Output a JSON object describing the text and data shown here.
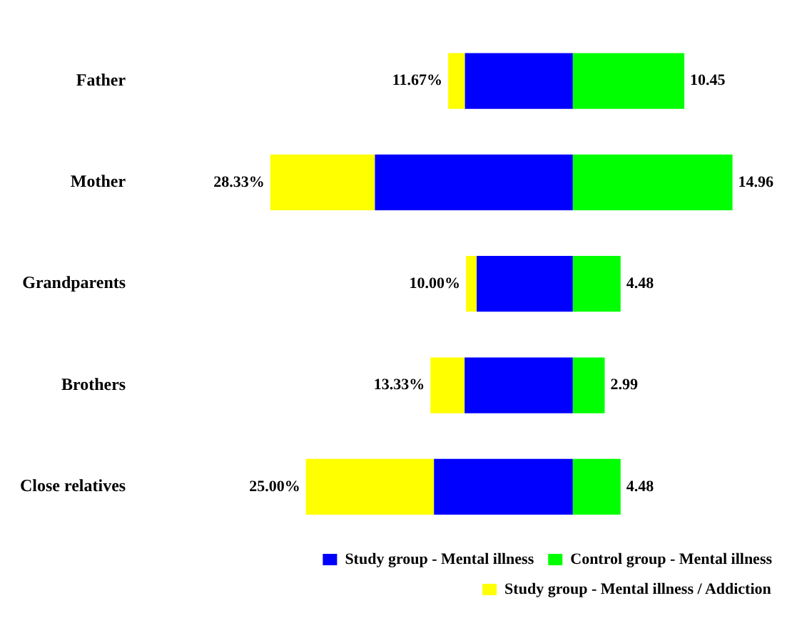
{
  "chart_data": {
    "type": "bar",
    "orientation": "horizontal",
    "stacked": true,
    "legend": "bottom right",
    "tick_labels": "y",
    "categories": [
      "Father",
      "Mother",
      "Grandparents",
      "Brothers",
      "Close relatives"
    ],
    "series": [
      {
        "name": "Study group - Mental illness",
        "color": "#0000ff",
        "values": [
          -10.1,
          -18.53,
          -9.0,
          -10.13,
          -13.0
        ]
      },
      {
        "name": "Control group - Mental illness",
        "color": "#00ff00",
        "values": [
          10.45,
          14.96,
          4.48,
          2.99,
          4.48
        ],
        "value_labels": [
          "10.45",
          "14.96",
          "4.48",
          "2.99",
          "4.48"
        ]
      },
      {
        "name": "Study group - Mental illness / Addiction",
        "color": "#ffff00",
        "values": [
          -1.57,
          -9.8,
          -1.0,
          -3.2,
          -12.0
        ]
      }
    ],
    "annotations": [
      {
        "text": "11.67%",
        "x": -11.67,
        "y": "Father"
      },
      {
        "text": "28.33%",
        "x": -28.33,
        "y": "Mother"
      },
      {
        "text": "10.00%",
        "x": -10.0,
        "y": "Grandparents"
      },
      {
        "text": "13.33%",
        "x": -13.33,
        "y": "Brothers"
      },
      {
        "text": "25.00%",
        "x": -25.0,
        "y": "Close relatives"
      }
    ]
  }
}
